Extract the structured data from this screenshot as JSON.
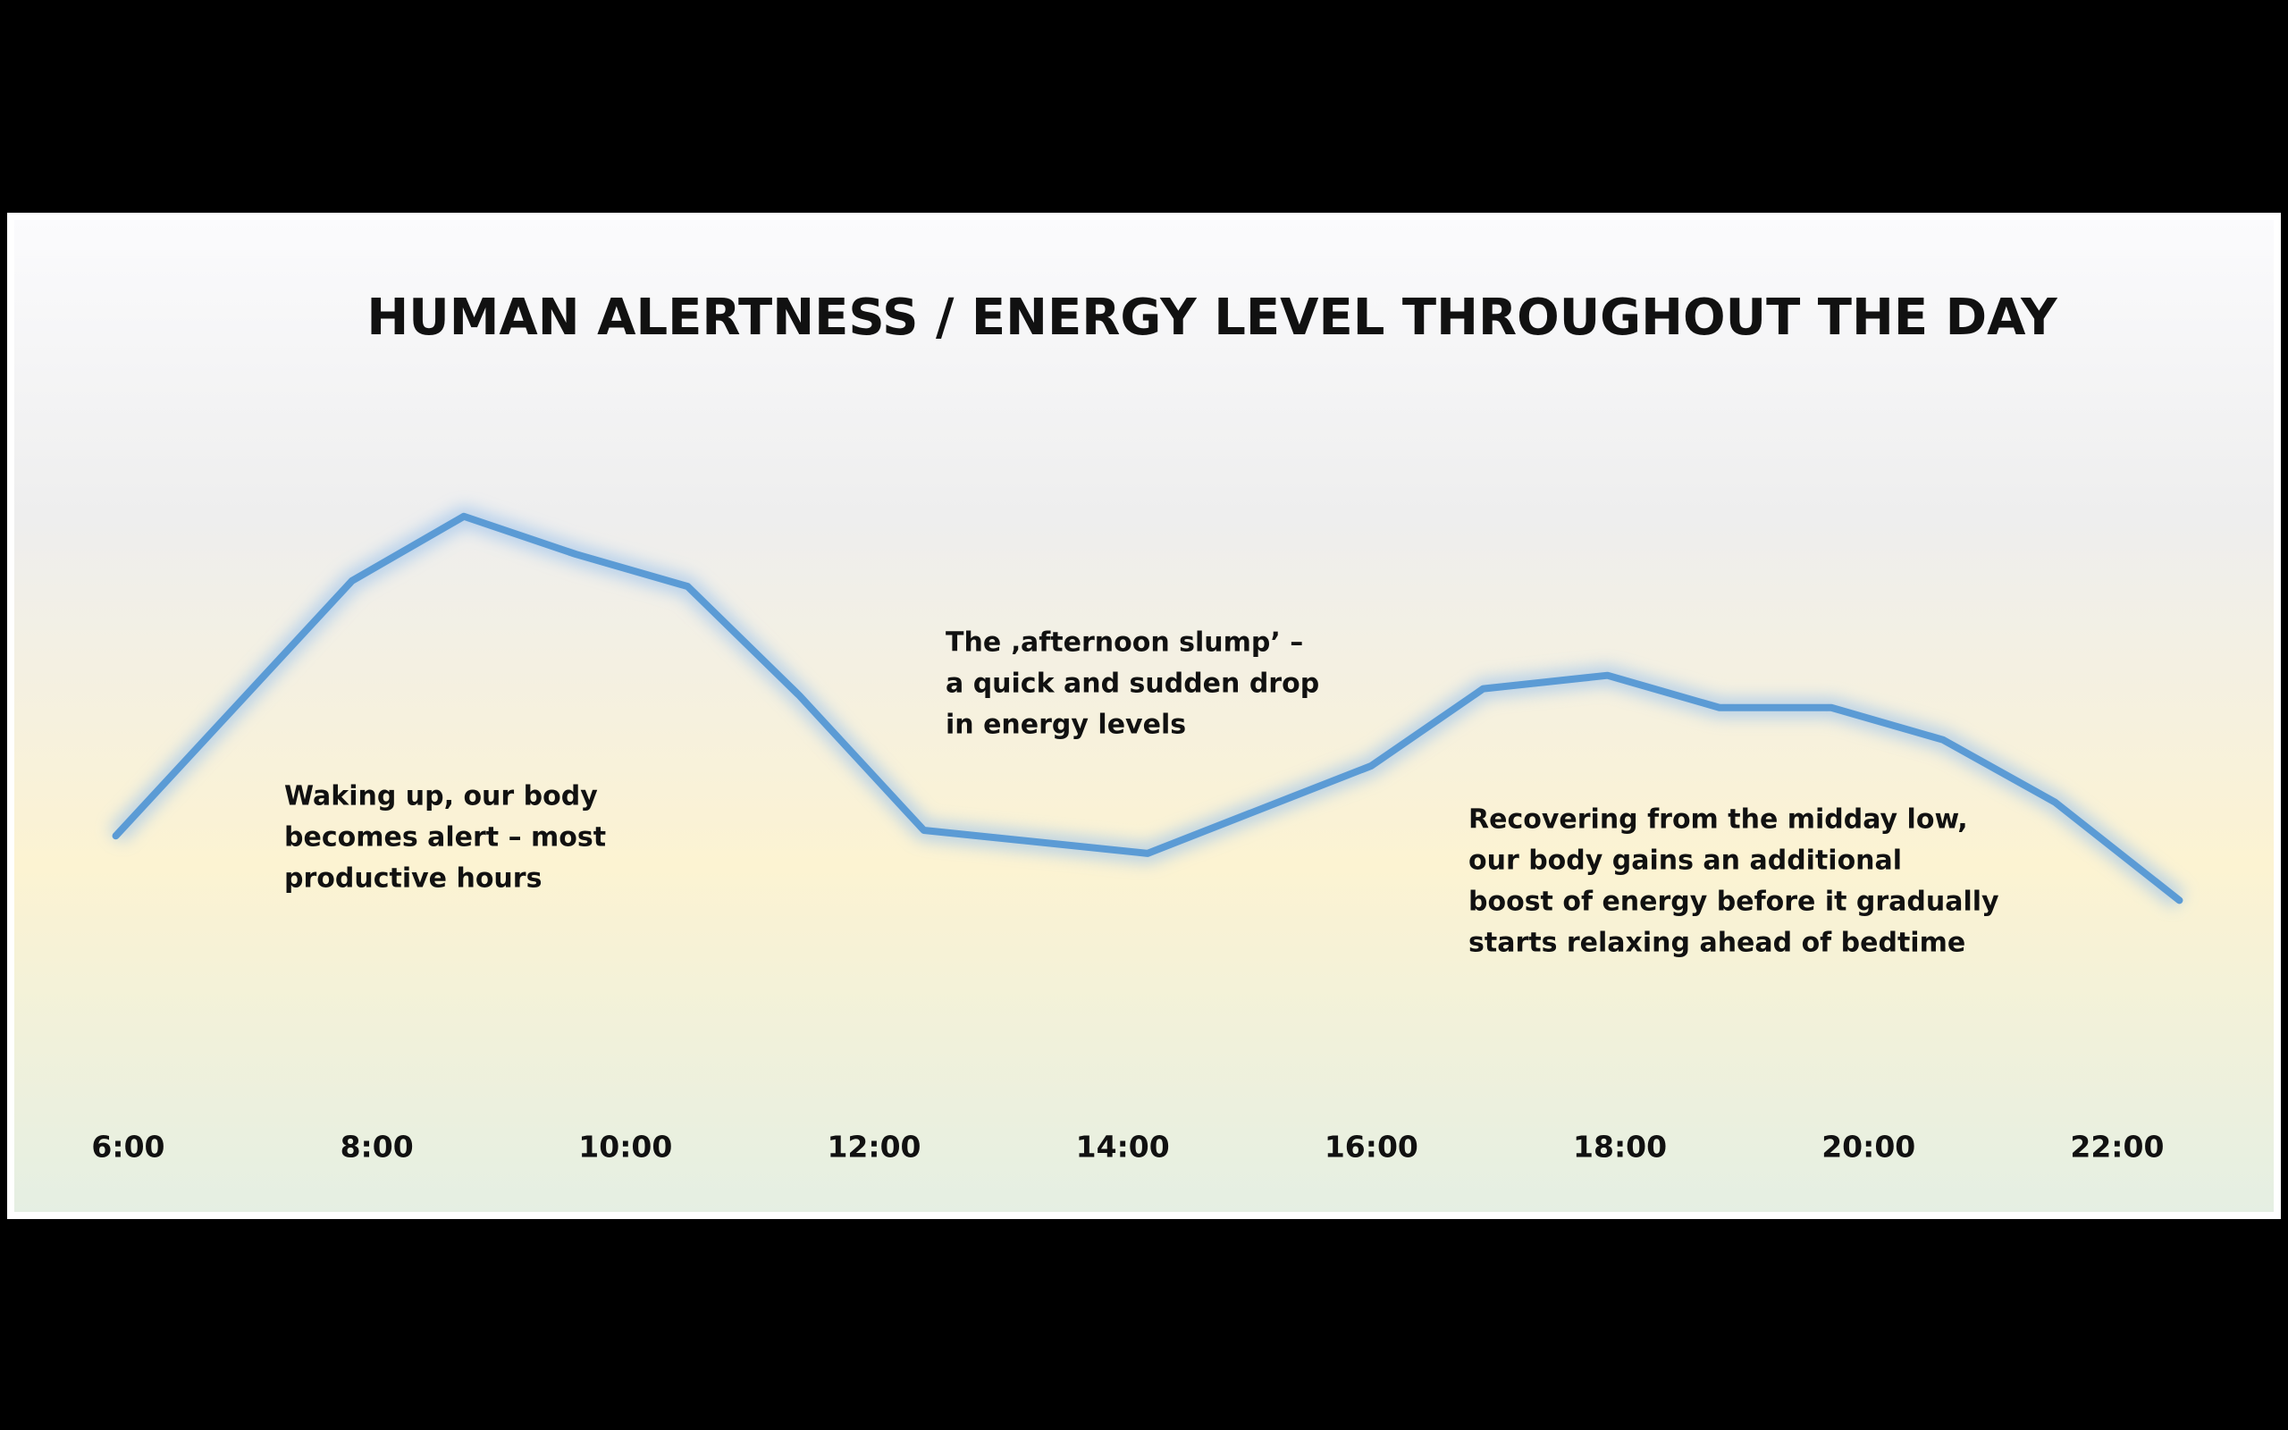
{
  "chart_data": {
    "type": "line",
    "title": "HUMAN ALERTNESS / ENERGY LEVEL THROUGHOUT THE DAY",
    "x": [
      5.9,
      7.8,
      8.7,
      9.6,
      10.5,
      11.4,
      12.4,
      14.2,
      16.0,
      16.9,
      17.9,
      18.8,
      19.7,
      20.6,
      21.5,
      22.5
    ],
    "series": [
      {
        "color": "#5b9bd5",
        "values": [
          39,
          75.4,
          84.6,
          79.2,
          74.6,
          59,
          39.8,
          36.5,
          49,
          60,
          61.9,
          57.3,
          57.3,
          52.7,
          43.8,
          29.8
        ]
      }
    ],
    "xlim": [
      5.4,
      23.0
    ],
    "xticks": [
      {
        "value": 6,
        "label": "6:00"
      },
      {
        "value": 8,
        "label": "8:00"
      },
      {
        "value": 10,
        "label": "10:00"
      },
      {
        "value": 12,
        "label": "12:00"
      },
      {
        "value": 14,
        "label": "14:00"
      },
      {
        "value": 16,
        "label": "16:00"
      },
      {
        "value": 18,
        "label": "18:00"
      },
      {
        "value": 20,
        "label": "20:00"
      },
      {
        "value": 22,
        "label": "22:00"
      }
    ],
    "ylim": [
      0,
      100
    ],
    "annotations": [
      [
        "Waking up, our body",
        "becomes alert – most",
        "productive hours"
      ],
      [
        "The ‚afternoon slump’ –",
        "a quick and sudden drop",
        "in energy levels"
      ],
      [
        "Recovering from the midday low,",
        "our body gains an additional",
        "boost of energy before it gradually",
        "starts relaxing ahead of bedtime"
      ]
    ]
  }
}
